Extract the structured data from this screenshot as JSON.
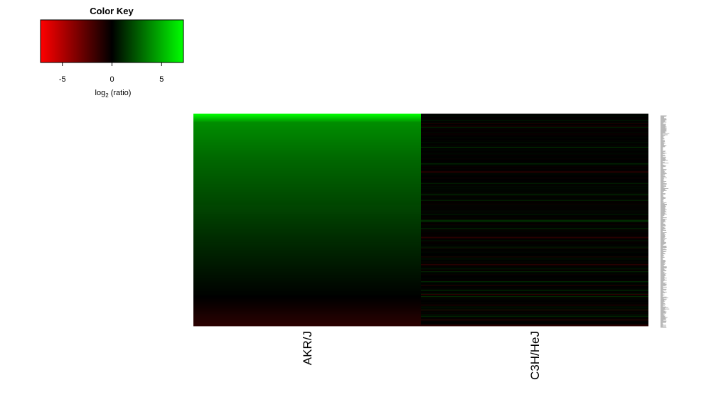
{
  "chart_data": {
    "type": "heatmap",
    "color_key": {
      "title": "Color Key",
      "xlabel_main": "log",
      "xlabel_sub": "2",
      "xlabel_tail": " (ratio)",
      "range": [
        -7.2,
        7.2
      ],
      "ticks": [
        -5,
        0,
        5
      ],
      "colors": {
        "low": "#ff0000",
        "mid": "#000000",
        "high": "#00ff00"
      }
    },
    "columns": [
      "AKR/J",
      "C3H/HeJ"
    ],
    "rows": 300,
    "akr_profile": {
      "description_values": [
        [
          0,
          7.2
        ],
        [
          0.04,
          4.0
        ],
        [
          0.2,
          3.0
        ],
        [
          0.6,
          1.2
        ],
        [
          0.85,
          0.1
        ],
        [
          0.9,
          -0.3
        ],
        [
          1.0,
          -1.2
        ]
      ]
    },
    "c3h_noise_amplitude": 1.2
  }
}
